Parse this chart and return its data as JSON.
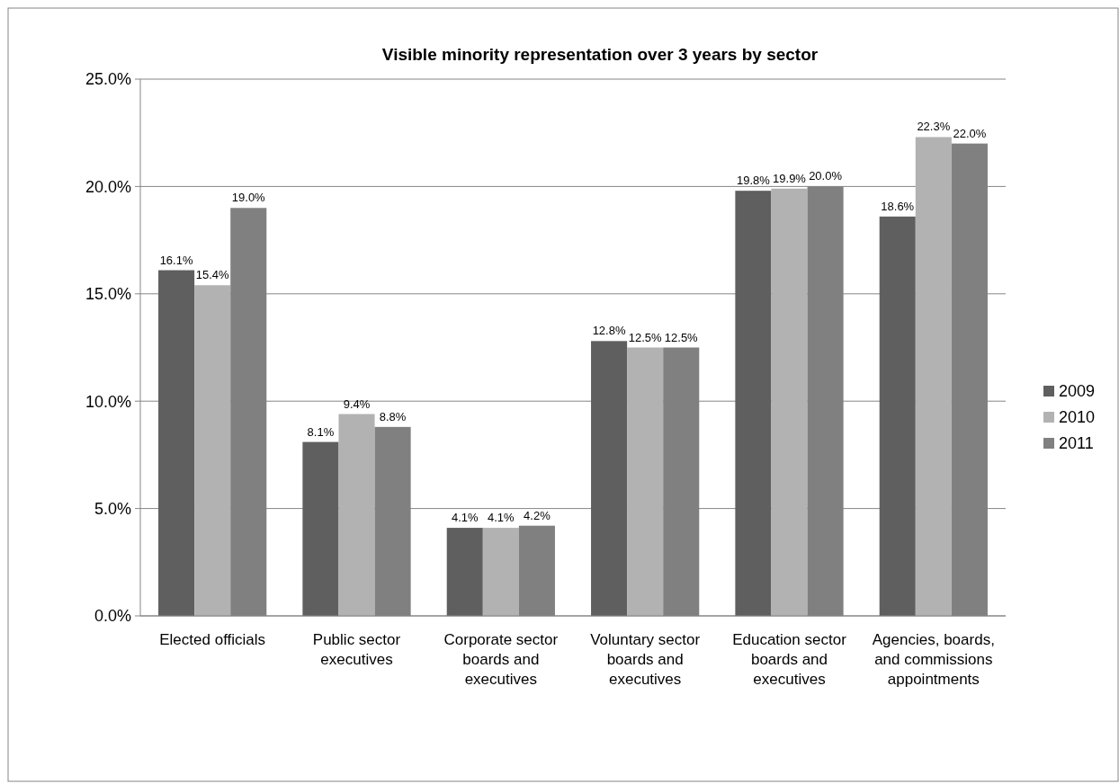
{
  "chart_data": {
    "type": "bar",
    "title": "Visible minority representation over 3 years by sector",
    "categories": [
      "Elected officials",
      "Public sector executives",
      "Corporate sector boards and executives",
      "Voluntary sector boards and executives",
      "Education sector boards and executives",
      "Agencies, boards, and commissions appointments"
    ],
    "series": [
      {
        "name": "2009",
        "color": "#5f5f5f",
        "values": [
          16.1,
          8.1,
          4.1,
          12.8,
          19.8,
          18.6
        ],
        "value_labels": [
          "16.1%",
          "8.1%",
          "4.1%",
          "12.8%",
          "19.8%",
          "18.6%"
        ]
      },
      {
        "name": "2010",
        "color": "#b2b2b2",
        "values": [
          15.4,
          9.4,
          4.1,
          12.5,
          19.9,
          22.3
        ],
        "value_labels": [
          "15.4%",
          "9.4%",
          "4.1%",
          "12.5%",
          "19.9%",
          "22.3%"
        ]
      },
      {
        "name": "2011",
        "color": "#808080",
        "values": [
          19.0,
          8.8,
          4.2,
          12.5,
          20.0,
          22.0
        ],
        "value_labels": [
          "19.0%",
          "8.8%",
          "4.2%",
          "12.5%",
          "20.0%",
          "22.0%"
        ]
      }
    ],
    "ylim": [
      0,
      25
    ],
    "yticks": [
      {
        "value": 0,
        "label": "0.0%"
      },
      {
        "value": 5,
        "label": "5.0%"
      },
      {
        "value": 10,
        "label": "10.0%"
      },
      {
        "value": 15,
        "label": "15.0%"
      },
      {
        "value": 20,
        "label": "20.0%"
      },
      {
        "value": 25,
        "label": "25.0%"
      }
    ],
    "grid": "y",
    "legend": "right"
  }
}
